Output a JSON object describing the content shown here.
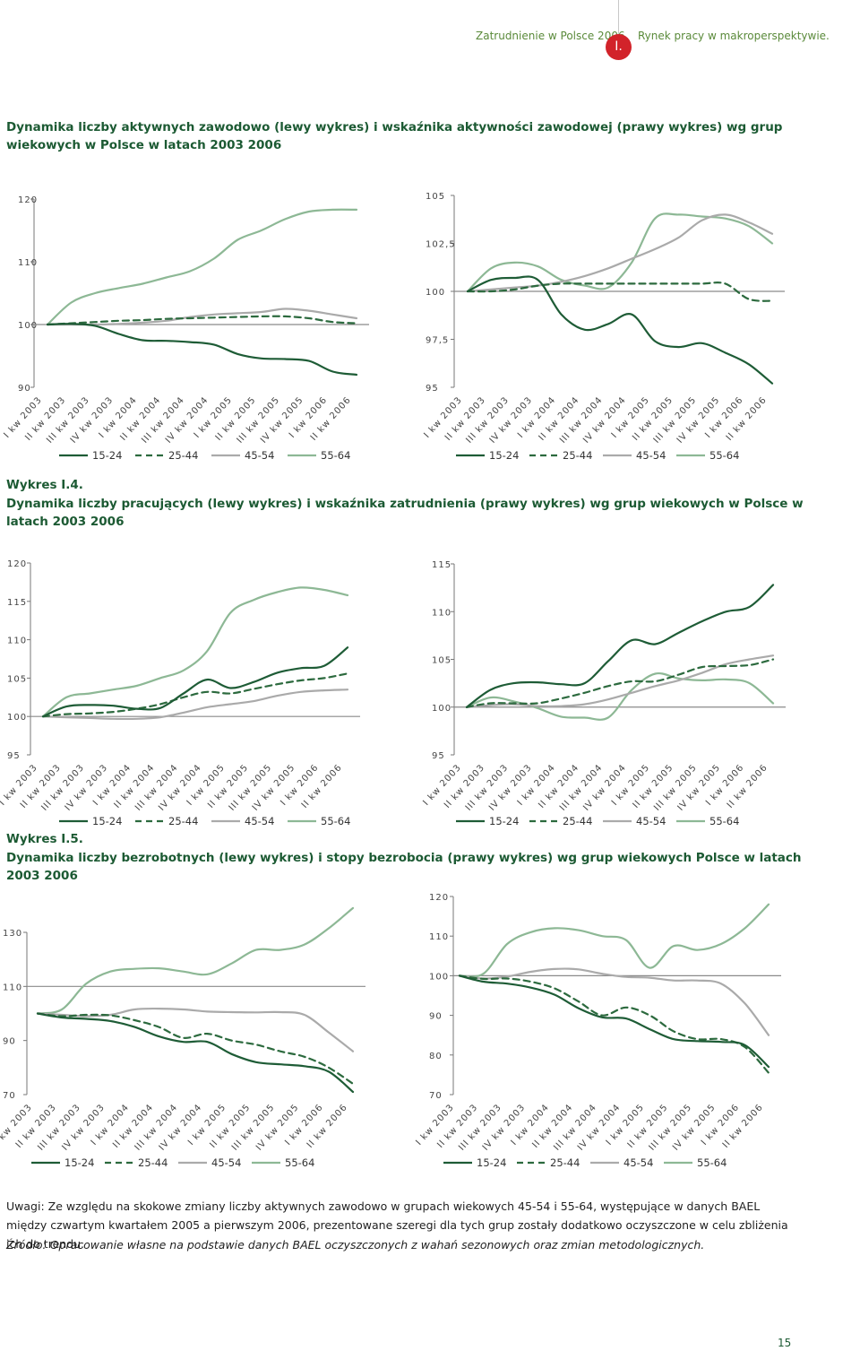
{
  "header": {
    "left_text": "Zatrudnienie w Polsce 2006",
    "badge": "I.",
    "right_text": "Rynek pracy w makroperspektywie."
  },
  "titles": {
    "fig3": "Dynamika liczby aktywnych zawodowo (lewy wykres) i wskaźnika aktywności zawodowej (prawy wykres) wg grup wiekowych w Polsce w latach 2003 2006",
    "fig4_label": "Wykres I.4.",
    "fig4": "Dynamika liczby pracujących (lewy wykres) i wskaźnika zatrudnienia (prawy wykres) wg grup wiekowych w Polsce w latach 2003 2006",
    "fig5_label": "Wykres I.5.",
    "fig5": "Dynamika liczby bezrobotnych (lewy wykres) i stopy bezrobocia (prawy wykres) wg grup wiekowych Polsce w latach 2003 2006"
  },
  "notes": {
    "uwagi": "Uwagi: Ze względu na skokowe zmiany liczby aktywnych zawodowo w grupach wiekowych 45-54 i 55-64, występujące w danych BAEL między czwartym kwartałem 2005 a pierwszym 2006, prezentowane szeregi dla tych grup zostały dodatkowo oczyszczone w celu zbliżenia ich do trendu.",
    "zrodlo": "Źródło: Opracowanie własne na podstawie danych BAEL oczyszczonych z wahań sezonowych oraz zmian metodologicznych."
  },
  "page_number": "15",
  "colors": {
    "c1524": "#1e5c36",
    "c2544": "#2c6a3e",
    "c4554": "#aaaaaa",
    "c5564": "#8db895",
    "axis": "#777777"
  },
  "chart_data": [
    {
      "id": "c3l",
      "type": "line",
      "title": "Dynamika liczby aktywnych zawodowo",
      "categories": [
        "I kw 2003",
        "II kw 2003",
        "III kw 2003",
        "IV kw 2003",
        "I kw 2004",
        "II kw 2004",
        "III kw 2004",
        "IV kw 2004",
        "I kw 2005",
        "II kw 2005",
        "III kw 2005",
        "IV kw 2005",
        "I kw 2006",
        "II kw 2006"
      ],
      "ylim": [
        90,
        120
      ],
      "yticks": [
        "90",
        "100",
        "110",
        "120"
      ],
      "baseline": 100,
      "series": [
        {
          "name": "15-24",
          "style": "solid",
          "values": [
            100,
            100.1,
            99.8,
            98.5,
            97.5,
            97.4,
            97.2,
            96.8,
            95.3,
            94.6,
            94.5,
            94.2,
            92.5,
            92.0
          ]
        },
        {
          "name": "25-44",
          "style": "dashed",
          "values": [
            100,
            100.2,
            100.4,
            100.6,
            100.7,
            100.9,
            101.0,
            101.1,
            101.2,
            101.3,
            101.3,
            101.0,
            100.4,
            100.2
          ]
        },
        {
          "name": "45-54",
          "style": "solid",
          "values": [
            100,
            100.0,
            100.0,
            100.1,
            100.3,
            100.6,
            101.2,
            101.6,
            101.8,
            102.0,
            102.5,
            102.2,
            101.6,
            101.0
          ]
        },
        {
          "name": "55-64",
          "style": "solid",
          "values": [
            100,
            103.5,
            105.0,
            105.8,
            106.5,
            107.5,
            108.5,
            110.5,
            113.5,
            115.0,
            116.8,
            118.0,
            118.3,
            118.3
          ]
        }
      ],
      "legend": [
        "15-24",
        "25-44",
        "45-54",
        "55-64"
      ]
    },
    {
      "id": "c3r",
      "type": "line",
      "title": "Wskaźnik aktywności zawodowej",
      "categories": [
        "I kw 2003",
        "II kw 2003",
        "III kw 2003",
        "IV kw 2003",
        "I kw 2004",
        "II kw 2004",
        "III kw 2004",
        "IV kw 2004",
        "I kw 2005",
        "II kw 2005",
        "III kw 2005",
        "IV kw 2005",
        "I kw 2006",
        "II kw 2006"
      ],
      "ylim": [
        95,
        105
      ],
      "yticks": [
        "95",
        "97,5",
        "100",
        "102,5",
        "105"
      ],
      "baseline": 100,
      "series": [
        {
          "name": "15-24",
          "style": "solid",
          "values": [
            100,
            100.6,
            100.7,
            100.6,
            98.8,
            98.0,
            98.3,
            98.8,
            97.4,
            97.1,
            97.3,
            96.8,
            96.2,
            95.2
          ]
        },
        {
          "name": "25-44",
          "style": "dashed",
          "values": [
            100,
            100.0,
            100.1,
            100.3,
            100.4,
            100.4,
            100.4,
            100.4,
            100.4,
            100.4,
            100.4,
            100.4,
            99.6,
            99.5
          ]
        },
        {
          "name": "45-54",
          "style": "solid",
          "values": [
            100,
            100.1,
            100.2,
            100.3,
            100.5,
            100.8,
            101.2,
            101.7,
            102.2,
            102.8,
            103.7,
            104.0,
            103.6,
            103.0
          ]
        },
        {
          "name": "55-64",
          "style": "solid",
          "values": [
            100,
            101.2,
            101.5,
            101.3,
            100.6,
            100.3,
            100.2,
            101.5,
            103.8,
            104.0,
            103.9,
            103.8,
            103.4,
            102.5
          ]
        }
      ],
      "legend": [
        "15-24",
        "25-44",
        "45-54",
        "55-64"
      ]
    },
    {
      "id": "c4l",
      "type": "line",
      "title": "Dynamika liczby pracujących",
      "categories": [
        "I kw 2003",
        "II kw 2003",
        "III kw 2003",
        "IV kw 2003",
        "I kw 2004",
        "II kw 2004",
        "III kw 2004",
        "IV kw 2004",
        "I kw 2005",
        "II kw 2005",
        "III kw 2005",
        "IV kw 2005",
        "I kw 2006",
        "II kw 2006"
      ],
      "ylim": [
        95,
        120
      ],
      "yticks": [
        "95",
        "100",
        "105",
        "110",
        "115",
        "120"
      ],
      "baseline": 100,
      "series": [
        {
          "name": "15-24",
          "style": "solid",
          "values": [
            100,
            101.3,
            101.5,
            101.4,
            101.0,
            101.1,
            103.0,
            104.8,
            103.7,
            104.5,
            105.7,
            106.3,
            106.6,
            109.0
          ]
        },
        {
          "name": "25-44",
          "style": "dashed",
          "values": [
            100,
            100.3,
            100.4,
            100.6,
            101.0,
            101.6,
            102.5,
            103.2,
            103.0,
            103.6,
            104.2,
            104.7,
            105.0,
            105.6
          ]
        },
        {
          "name": "45-54",
          "style": "solid",
          "values": [
            100,
            99.9,
            99.8,
            99.7,
            99.7,
            99.9,
            100.5,
            101.2,
            101.6,
            102.0,
            102.7,
            103.2,
            103.4,
            103.5
          ]
        },
        {
          "name": "55-64",
          "style": "solid",
          "values": [
            100,
            102.5,
            103.0,
            103.5,
            104.0,
            105.0,
            106.0,
            108.5,
            113.5,
            115.2,
            116.2,
            116.8,
            116.5,
            115.8
          ]
        }
      ],
      "legend": [
        "15-24",
        "25-44",
        "45-54",
        "55-64"
      ]
    },
    {
      "id": "c4r",
      "type": "line",
      "title": "Wskaźnik zatrudnienia",
      "categories": [
        "I kw 2003",
        "II kw 2003",
        "III kw 2003",
        "IV kw 2003",
        "I kw 2004",
        "II kw 2004",
        "III kw 2004",
        "IV kw 2004",
        "I kw 2005",
        "II kw 2005",
        "III kw 2005",
        "IV kw 2005",
        "I kw 2006",
        "II kw 2006"
      ],
      "ylim": [
        95,
        115
      ],
      "yticks": [
        "95",
        "100",
        "105",
        "110",
        "115"
      ],
      "baseline": 100,
      "series": [
        {
          "name": "15-24",
          "style": "solid",
          "values": [
            100,
            101.8,
            102.5,
            102.6,
            102.4,
            102.5,
            104.8,
            107.0,
            106.6,
            107.8,
            109.0,
            110.0,
            110.5,
            112.8
          ]
        },
        {
          "name": "25-44",
          "style": "dashed",
          "values": [
            100,
            100.4,
            100.4,
            100.4,
            100.9,
            101.5,
            102.2,
            102.7,
            102.7,
            103.4,
            104.2,
            104.3,
            104.4,
            105.0
          ]
        },
        {
          "name": "45-54",
          "style": "solid",
          "values": [
            100,
            100.2,
            100.3,
            100.1,
            100.1,
            100.3,
            100.8,
            101.5,
            102.2,
            102.8,
            103.6,
            104.5,
            105.0,
            105.4
          ]
        },
        {
          "name": "55-64",
          "style": "solid",
          "values": [
            100,
            101.0,
            100.6,
            99.9,
            99.0,
            98.9,
            98.9,
            101.8,
            103.5,
            103.0,
            102.8,
            102.9,
            102.5,
            100.4
          ]
        }
      ],
      "legend": [
        "15-24",
        "25-44",
        "45-54",
        "55-64"
      ]
    },
    {
      "id": "c5l",
      "type": "line",
      "title": "Dynamika liczby bezrobotnych",
      "categories": [
        "I kw 2003",
        "II kw 2003",
        "III kw 2003",
        "IV kw 2003",
        "I kw 2004",
        "II kw 2004",
        "III kw 2004",
        "IV kw 2004",
        "I kw 2005",
        "II kw 2005",
        "III kw 2005",
        "IV kw 2005",
        "I kw 2006",
        "II kw 2006"
      ],
      "ylim": [
        70,
        130
      ],
      "yticks": [
        "70",
        "90",
        "110",
        "130"
      ],
      "baseline": 110,
      "series": [
        {
          "name": "15-24",
          "style": "solid",
          "values": [
            100,
            98.5,
            98.0,
            97.2,
            95.0,
            91.5,
            89.5,
            89.5,
            85.0,
            82.0,
            81.2,
            80.5,
            78.5,
            71.0
          ]
        },
        {
          "name": "25-44",
          "style": "dashed",
          "values": [
            100,
            99.0,
            99.5,
            99.3,
            97.5,
            95.0,
            91.0,
            92.5,
            90.0,
            88.5,
            86.0,
            84.0,
            80.0,
            74.0
          ]
        },
        {
          "name": "45-54",
          "style": "solid",
          "values": [
            100,
            99.5,
            99.0,
            99.5,
            101.5,
            101.8,
            101.5,
            100.7,
            100.5,
            100.4,
            100.5,
            99.5,
            93.0,
            86.0
          ]
        },
        {
          "name": "55-64",
          "style": "solid",
          "values": [
            100,
            101.5,
            111.0,
            115.5,
            116.5,
            116.7,
            115.5,
            114.5,
            118.5,
            123.5,
            123.5,
            125.5,
            131.5,
            139.0
          ]
        }
      ],
      "legend": [
        "15-24",
        "25-44",
        "45-54",
        "55-64"
      ]
    },
    {
      "id": "c5r",
      "type": "line",
      "title": "Stopa bezrobocia",
      "categories": [
        "I kw 2003",
        "II kw 2003",
        "III kw 2003",
        "IV kw 2003",
        "I kw 2004",
        "II kw 2004",
        "III kw 2004",
        "IV kw 2004",
        "I kw 2005",
        "II kw 2005",
        "III kw 2005",
        "IV kw 2005",
        "I kw 2006",
        "II kw 2006"
      ],
      "ylim": [
        70,
        120
      ],
      "yticks": [
        "70",
        "80",
        "90",
        "100",
        "110",
        "120"
      ],
      "baseline": 100,
      "series": [
        {
          "name": "15-24",
          "style": "solid",
          "values": [
            100,
            98.5,
            98.0,
            97.0,
            95.2,
            91.8,
            89.5,
            89.2,
            86.5,
            84.0,
            83.5,
            83.3,
            82.5,
            77.0
          ]
        },
        {
          "name": "25-44",
          "style": "dashed",
          "values": [
            100,
            99.2,
            99.3,
            98.5,
            96.8,
            93.5,
            90.0,
            92.0,
            90.0,
            86.0,
            84.0,
            84.0,
            82.0,
            75.5
          ]
        },
        {
          "name": "45-54",
          "style": "solid",
          "values": [
            100,
            99.3,
            99.8,
            101.0,
            101.7,
            101.6,
            100.5,
            99.7,
            99.5,
            98.8,
            98.8,
            98.0,
            93.0,
            85.0
          ]
        },
        {
          "name": "55-64",
          "style": "solid",
          "values": [
            100,
            100.5,
            108.0,
            111.0,
            112.0,
            111.5,
            110.0,
            109.0,
            102.0,
            107.5,
            106.5,
            108.0,
            112.0,
            118.0
          ]
        }
      ],
      "legend": [
        "15-24",
        "25-44",
        "45-54",
        "55-64"
      ]
    }
  ]
}
